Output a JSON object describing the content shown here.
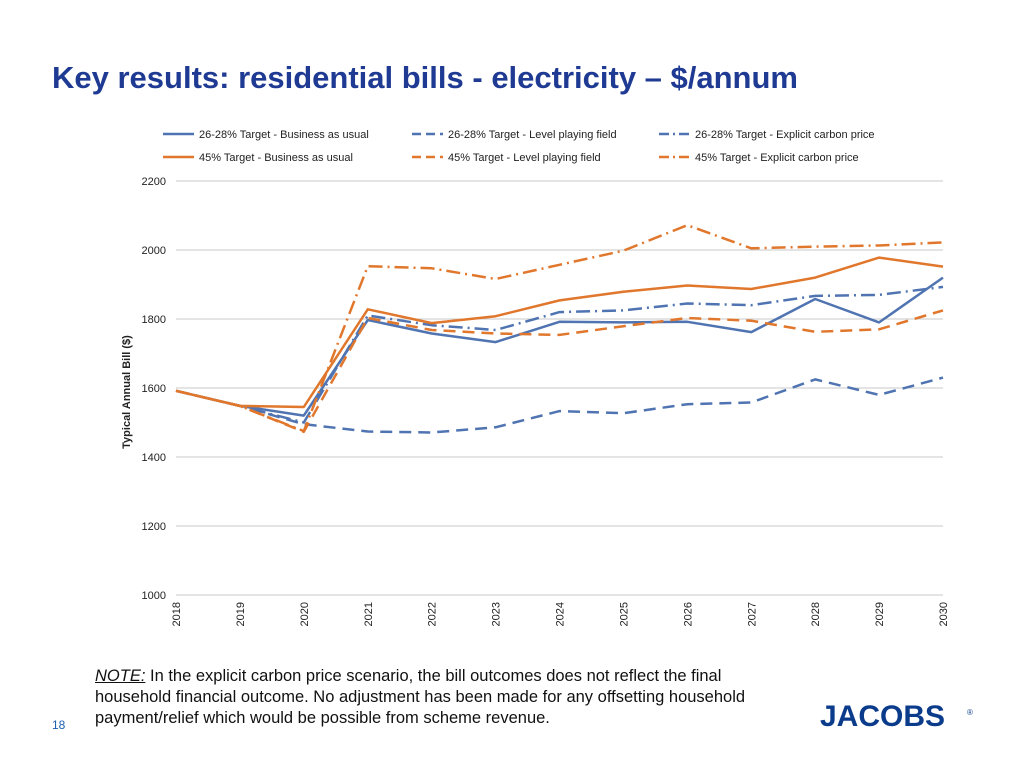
{
  "slide": {
    "title": "Key results: residential bills - electricity – $/annum",
    "note_label": "NOTE:",
    "note_text": " In the explicit carbon price scenario, the bill outcomes does not reflect the final household financial outcome.  No adjustment has been made for any offsetting household payment/relief which would be possible from scheme revenue.",
    "page_number": "18",
    "logo_text": "JACOBS",
    "logo_mark": "®"
  },
  "chart_data": {
    "type": "line",
    "title": "",
    "xlabel": "",
    "ylabel": "Typical Annual Bill ($)",
    "x": [
      "2018",
      "2019",
      "2020",
      "2021",
      "2022",
      "2023",
      "2024",
      "2025",
      "2026",
      "2027",
      "2028",
      "2029",
      "2030"
    ],
    "ylim": [
      1000,
      2200
    ],
    "yticks": [
      1000,
      1200,
      1400,
      1600,
      1800,
      2000,
      2200
    ],
    "grid": true,
    "legend_position": "top",
    "series": [
      {
        "name": "26-28% Target - Business as usual",
        "color": "#4f74b1",
        "style": "solid",
        "values": [
          1592,
          1548,
          1520,
          1797,
          1758,
          1733,
          1792,
          1790,
          1792,
          1762,
          1858,
          1790,
          1920
        ]
      },
      {
        "name": "26-28% Target - Level playing field",
        "color": "#4f74b1",
        "style": "dash",
        "values": [
          1592,
          1548,
          1495,
          1474,
          1471,
          1486,
          1533,
          1527,
          1553,
          1558,
          1625,
          1580,
          1630
        ]
      },
      {
        "name": "26-28% Target - Explicit carbon price",
        "color": "#4f74b1",
        "style": "dashdot",
        "values": [
          1592,
          1548,
          1500,
          1810,
          1782,
          1768,
          1820,
          1825,
          1845,
          1840,
          1867,
          1870,
          1893
        ]
      },
      {
        "name": "45% Target - Business as usual",
        "color": "#e0772c",
        "style": "solid",
        "values": [
          1592,
          1548,
          1545,
          1828,
          1788,
          1808,
          1854,
          1879,
          1897,
          1887,
          1920,
          1978,
          1952
        ]
      },
      {
        "name": "45% Target - Level playing field",
        "color": "#e0772c",
        "style": "dash",
        "values": [
          1592,
          1548,
          1473,
          1803,
          1768,
          1758,
          1754,
          1779,
          1803,
          1795,
          1763,
          1770,
          1825
        ]
      },
      {
        "name": "45% Target - Explicit carbon price",
        "color": "#e0772c",
        "style": "dashdot",
        "values": [
          1592,
          1548,
          1475,
          1953,
          1947,
          1916,
          1957,
          1998,
          2072,
          2005,
          2010,
          2013,
          2022
        ]
      }
    ]
  }
}
